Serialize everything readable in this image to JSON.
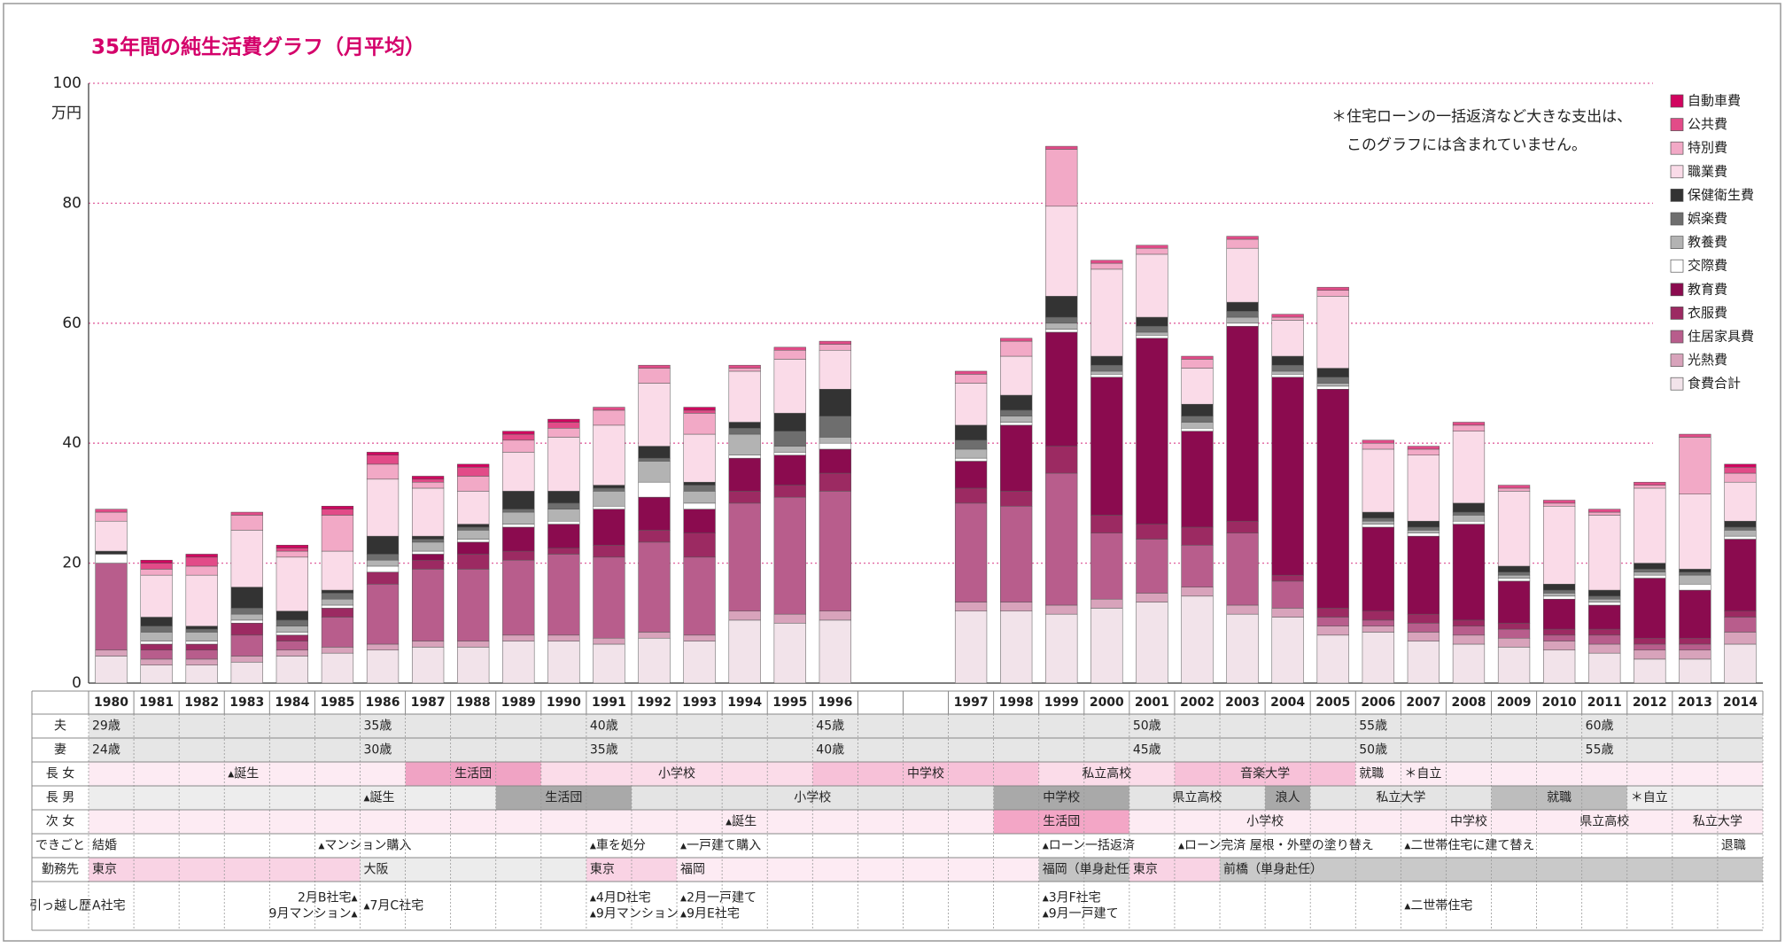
{
  "chart_data": {
    "type": "bar",
    "stacked": true,
    "title": "35年間の純生活費グラフ（月平均）",
    "y_label": "万円",
    "annotation": [
      "＊住宅ローンの一括返済など大きな支出は、",
      "このグラフには含まれていません。"
    ],
    "categories": [
      "1980",
      "1981",
      "1982",
      "1983",
      "1984",
      "1985",
      "1986",
      "1987",
      "1988",
      "1989",
      "1990",
      "1991",
      "1992",
      "1993",
      "1994",
      "1995",
      "1996",
      "1997",
      "1998",
      "1999",
      "2000",
      "2001",
      "2002",
      "2003",
      "2004",
      "2005",
      "2006",
      "2007",
      "2008",
      "2009",
      "2010",
      "2011",
      "2012",
      "2013",
      "2014"
    ],
    "series": [
      {
        "name": "食費合計",
        "color": "#f2e3ea",
        "values": [
          4.5,
          3,
          3,
          3.5,
          4.5,
          5,
          5.5,
          6,
          6,
          7,
          7,
          6.5,
          7.5,
          7,
          10.5,
          10,
          10.5,
          12,
          12,
          11.5,
          12.5,
          13.5,
          14.5,
          11.5,
          11,
          8,
          8.5,
          7,
          6.5,
          6,
          5.5,
          5,
          4,
          4,
          6.5
        ]
      },
      {
        "name": "光熱費",
        "color": "#d8a3bb",
        "values": [
          1,
          1,
          1,
          1,
          1,
          1,
          1,
          1,
          1,
          1,
          1,
          1,
          1,
          1,
          1.5,
          1.5,
          1.5,
          1.5,
          1.5,
          1.5,
          1.5,
          1.5,
          1.5,
          1.5,
          1.5,
          1.5,
          1,
          1.5,
          1.5,
          1.5,
          1.5,
          1.5,
          1.5,
          1.5,
          2
        ]
      },
      {
        "name": "住居家具費",
        "color": "#b85d8c",
        "values": [
          14.5,
          1.5,
          1.5,
          3.5,
          1.5,
          5,
          10,
          12,
          12,
          12.5,
          13.5,
          13.5,
          15,
          13,
          18,
          19.5,
          20,
          16.5,
          16,
          22,
          11,
          9,
          7,
          12,
          4.5,
          1.5,
          1,
          1.5,
          1.5,
          1.5,
          1,
          1.5,
          1,
          1,
          2.5
        ]
      },
      {
        "name": "衣服費",
        "color": "#9c2a62",
        "values": [
          0,
          1,
          1,
          2,
          1,
          1.5,
          2,
          1.5,
          2.5,
          1.5,
          1,
          2,
          2,
          4,
          2,
          2,
          3,
          2.5,
          2.5,
          4.5,
          3,
          2.5,
          3,
          2,
          1,
          1.5,
          1.5,
          1.5,
          1,
          1,
          1,
          1,
          1,
          1,
          1
        ]
      },
      {
        "name": "教育費",
        "color": "#8b0b4f",
        "values": [
          0,
          0,
          0,
          0,
          0,
          0,
          0,
          1,
          2,
          4,
          4,
          6,
          5.5,
          4,
          5.5,
          5,
          4,
          4.5,
          11,
          19,
          23,
          31,
          16,
          32.5,
          33,
          36.5,
          14,
          13,
          16,
          7,
          5,
          4,
          10,
          8,
          12
        ]
      },
      {
        "name": "交際費",
        "color": "#ffffff",
        "values": [
          1.5,
          0.5,
          0.5,
          0.5,
          0.5,
          0.5,
          1,
          0.5,
          0.5,
          0.5,
          0.5,
          0.5,
          2.5,
          1,
          0.5,
          0.5,
          1,
          0.5,
          0.5,
          0.5,
          0.5,
          0.5,
          0.5,
          0.5,
          0.5,
          0.5,
          0.5,
          0.5,
          0.5,
          0.5,
          0.5,
          0.5,
          0.5,
          1,
          0.5
        ]
      },
      {
        "name": "教養費",
        "color": "#b3b3b3",
        "values": [
          0,
          1.5,
          1.5,
          1,
          1,
          1,
          1,
          1.5,
          1.5,
          2,
          2,
          2.5,
          3.5,
          2,
          3.5,
          1,
          1,
          1.5,
          1,
          1,
          0.5,
          0.5,
          1,
          1,
          0.5,
          0.5,
          0.5,
          0.5,
          1,
          0.5,
          0.5,
          0.5,
          0.5,
          1.5,
          1
        ]
      },
      {
        "name": "娯楽費",
        "color": "#6e6e6e",
        "values": [
          0,
          1,
          0.5,
          1,
          1,
          1,
          1,
          0.5,
          0.5,
          0.5,
          1,
          0.5,
          0.5,
          1,
          1,
          2.5,
          3.5,
          1.5,
          1,
          1,
          1,
          1,
          1,
          1,
          1,
          1,
          0.5,
          0.5,
          0.5,
          0.5,
          0.5,
          0.5,
          0.5,
          0.5,
          0.5
        ]
      },
      {
        "name": "保健衛生費",
        "color": "#333333",
        "values": [
          0.5,
          1.5,
          0.5,
          3.5,
          1.5,
          0.5,
          3,
          0.5,
          0.5,
          3,
          2,
          0.5,
          2,
          0.5,
          1,
          3,
          4.5,
          2.5,
          2.5,
          3.5,
          1.5,
          1.5,
          2,
          1.5,
          1.5,
          1.5,
          1,
          1,
          1.5,
          1,
          1,
          1,
          1,
          0.5,
          1
        ]
      },
      {
        "name": "職業費",
        "color": "#fadbe8",
        "values": [
          5,
          7,
          8.5,
          9.5,
          9,
          6.5,
          9.5,
          8,
          5.5,
          6.5,
          9,
          10,
          10.5,
          8,
          8.5,
          9,
          6.5,
          7,
          6.5,
          15,
          14.5,
          10.5,
          6,
          9,
          6,
          12,
          10.5,
          11,
          12,
          12.5,
          13,
          12.5,
          12.5,
          12.5,
          6.5
        ]
      },
      {
        "name": "特別費",
        "color": "#f2a9c6",
        "values": [
          1.5,
          1,
          1.5,
          2.5,
          1,
          6,
          2.5,
          1,
          2.5,
          2,
          1.5,
          2.5,
          2.5,
          3.5,
          0.5,
          1.5,
          1,
          1.5,
          2.5,
          9.5,
          1,
          1,
          1.5,
          1.5,
          0.5,
          1,
          1,
          1,
          1,
          0.5,
          0.5,
          0.5,
          0.5,
          9.5,
          1.5
        ]
      },
      {
        "name": "公共費",
        "color": "#e24b88",
        "values": [
          0.5,
          1,
          1.5,
          0.5,
          0.5,
          1,
          1.5,
          0.5,
          1.5,
          1,
          1,
          0.5,
          0.5,
          0.5,
          0.5,
          0.5,
          0.5,
          0.5,
          0.5,
          0.5,
          0.5,
          0.5,
          0.5,
          0.5,
          0.5,
          0.5,
          0.5,
          0.5,
          0.5,
          0.5,
          0.5,
          0.5,
          0.5,
          0.5,
          1
        ]
      },
      {
        "name": "自動車費",
        "color": "#d1045f",
        "values": [
          0,
          0.5,
          0.5,
          0,
          0.5,
          0.5,
          0.5,
          0.5,
          0.5,
          0.5,
          0.5,
          0,
          0,
          0.5,
          0,
          0,
          0,
          0,
          0,
          0,
          0,
          0,
          0,
          0,
          0,
          0,
          0,
          0,
          0,
          0,
          0,
          0,
          0,
          0,
          0.5
        ]
      }
    ],
    "ylim": [
      0,
      100
    ],
    "yticks": [
      0,
      20,
      40,
      60,
      80,
      100
    ],
    "grid": true,
    "legend": "right"
  },
  "timeline": {
    "rows": [
      {
        "label": "夫",
        "background": "#e6e6e6",
        "cells": [
          {
            "text": "29歳",
            "from": 1980,
            "to": 1980
          },
          {
            "text": "35歳",
            "from": 1986,
            "to": 1986
          },
          {
            "text": "40歳",
            "from": 1991,
            "to": 1991
          },
          {
            "text": "45歳",
            "from": 1996,
            "to": 1996
          },
          {
            "text": "50歳",
            "from": 2001,
            "to": 2001
          },
          {
            "text": "55歳",
            "from": 2006,
            "to": 2006
          },
          {
            "text": "60歳",
            "from": 2011,
            "to": 2011
          }
        ]
      },
      {
        "label": "妻",
        "background": "#e6e6e6",
        "cells": [
          {
            "text": "24歳",
            "from": 1980,
            "to": 1980
          },
          {
            "text": "30歳",
            "from": 1986,
            "to": 1986
          },
          {
            "text": "35歳",
            "from": 1991,
            "to": 1991
          },
          {
            "text": "40歳",
            "from": 1996,
            "to": 1996
          },
          {
            "text": "45歳",
            "from": 2001,
            "to": 2001
          },
          {
            "text": "50歳",
            "from": 2006,
            "to": 2006
          },
          {
            "text": "55歳",
            "from": 2011,
            "to": 2011
          }
        ]
      },
      {
        "label": "長 女",
        "background": "#fdebf3",
        "cells": [
          {
            "text": "▴誕生",
            "from": 1983,
            "to": 1983
          },
          {
            "text": "生活団",
            "from": 1987,
            "to": 1989,
            "color": "#f0a3c4"
          },
          {
            "text": "小学校",
            "from": 1990,
            "to": 1995,
            "color": "#fbdce9"
          },
          {
            "text": "中学校",
            "from": 1996,
            "to": 1998,
            "color": "#f7c1d8"
          },
          {
            "text": "私立高校",
            "from": 1999,
            "to": 2001,
            "color": "#fbdce9"
          },
          {
            "text": "音楽大学",
            "from": 2002,
            "to": 2005,
            "color": "#f7c1d8"
          },
          {
            "text": "就職",
            "from": 2006,
            "to": 2006
          },
          {
            "text": "＊自立",
            "from": 2007,
            "to": 2007
          }
        ]
      },
      {
        "label": "長 男",
        "background": "#ededed",
        "cells": [
          {
            "text": "▴誕生",
            "from": 1986,
            "to": 1986
          },
          {
            "text": "生活団",
            "from": 1989,
            "to": 1991,
            "color": "#a9a9a9"
          },
          {
            "text": "小学校",
            "from": 1992,
            "to": 1997,
            "color": "#e4e4e4"
          },
          {
            "text": "中学校",
            "from": 1998,
            "to": 2000,
            "color": "#a9a9a9"
          },
          {
            "text": "県立高校",
            "from": 2001,
            "to": 2003,
            "color": "#e4e4e4"
          },
          {
            "text": "浪人",
            "from": 2004,
            "to": 2004,
            "color": "#a9a9a9"
          },
          {
            "text": "私立大学",
            "from": 2005,
            "to": 2008,
            "color": "#e4e4e4"
          },
          {
            "text": "就職",
            "from": 2009,
            "to": 2011,
            "color": "#bdbdbd"
          },
          {
            "text": "＊自立",
            "from": 2012,
            "to": 2012
          }
        ]
      },
      {
        "label": "次 女",
        "background": "#fdebf3",
        "cells": [
          {
            "text": "▴誕生",
            "from": 1994,
            "to": 1994
          },
          {
            "text": "生活団",
            "from": 1998,
            "to": 2000,
            "color": "#f3a6c6"
          },
          {
            "text": "小学校",
            "from": 2001,
            "to": 2006,
            "color": "#fdebf3"
          },
          {
            "text": "中学校",
            "from": 2007,
            "to": 2009,
            "color": "#fdebf3"
          },
          {
            "text": "県立高校",
            "from": 2010,
            "to": 2012,
            "color": "#fdebf3"
          },
          {
            "text": "私立大学",
            "from": 2013,
            "to": 2014,
            "color": "#fdebf3"
          }
        ]
      },
      {
        "label": "できごと",
        "cells": [
          {
            "text": "結婚",
            "from": 1980,
            "to": 1980
          },
          {
            "text": "▴マンション購入",
            "from": 1985,
            "to": 1985
          },
          {
            "text": "▴車を処分",
            "from": 1991,
            "to": 1991
          },
          {
            "text": "▴一戸建て購入",
            "from": 1993,
            "to": 1993
          },
          {
            "text": "▴ローン一括返済",
            "from": 1999,
            "to": 1999
          },
          {
            "text": "▴ローン完済 屋根・外壁の塗り替え",
            "from": 2002,
            "to": 2002
          },
          {
            "text": "▴二世帯住宅に建て替え",
            "from": 2007,
            "to": 2007
          },
          {
            "text": "退職",
            "from": 2014,
            "to": 2014
          }
        ]
      },
      {
        "label": "勤務先",
        "align": "start",
        "cells": [
          {
            "text": "東京",
            "from": 1980,
            "to": 1985,
            "color": "#f9d3e4"
          },
          {
            "text": "大阪",
            "from": 1986,
            "to": 1990,
            "color": "#ececec"
          },
          {
            "text": "東京",
            "from": 1991,
            "to": 1992,
            "color": "#f9d3e4"
          },
          {
            "text": "福岡",
            "from": 1993,
            "to": 1998,
            "color": "#fdebf3"
          },
          {
            "text": "福岡（単身赴任）",
            "from": 1999,
            "to": 2000,
            "color": "#c4c4c4"
          },
          {
            "text": "東京",
            "from": 2001,
            "to": 2002,
            "color": "#f9d3e4"
          },
          {
            "text": "前橋（単身赴任）",
            "from": 2003,
            "to": 2014,
            "color": "#c9c9c9"
          }
        ]
      },
      {
        "label": "引っ越し歴",
        "cells": [
          {
            "text": "A社宅",
            "from": 1980,
            "to": 1980
          },
          {
            "lines": [
              "2月B社宅▴",
              "9月マンション▴"
            ],
            "from": 1984,
            "to": 1985
          },
          {
            "text": "▴7月C社宅",
            "from": 1986,
            "to": 1986
          },
          {
            "lines": [
              "▴4月D社宅",
              "▴9月マンション"
            ],
            "from": 1991,
            "to": 1991
          },
          {
            "lines": [
              "▴2月一戸建て",
              "▴9月E社宅"
            ],
            "from": 1993,
            "to": 1993
          },
          {
            "lines": [
              "▴3月F社宅",
              "▴9月一戸建て"
            ],
            "from": 1999,
            "to": 1999
          },
          {
            "text": "▴二世帯住宅",
            "from": 2007,
            "to": 2007
          }
        ]
      }
    ]
  }
}
